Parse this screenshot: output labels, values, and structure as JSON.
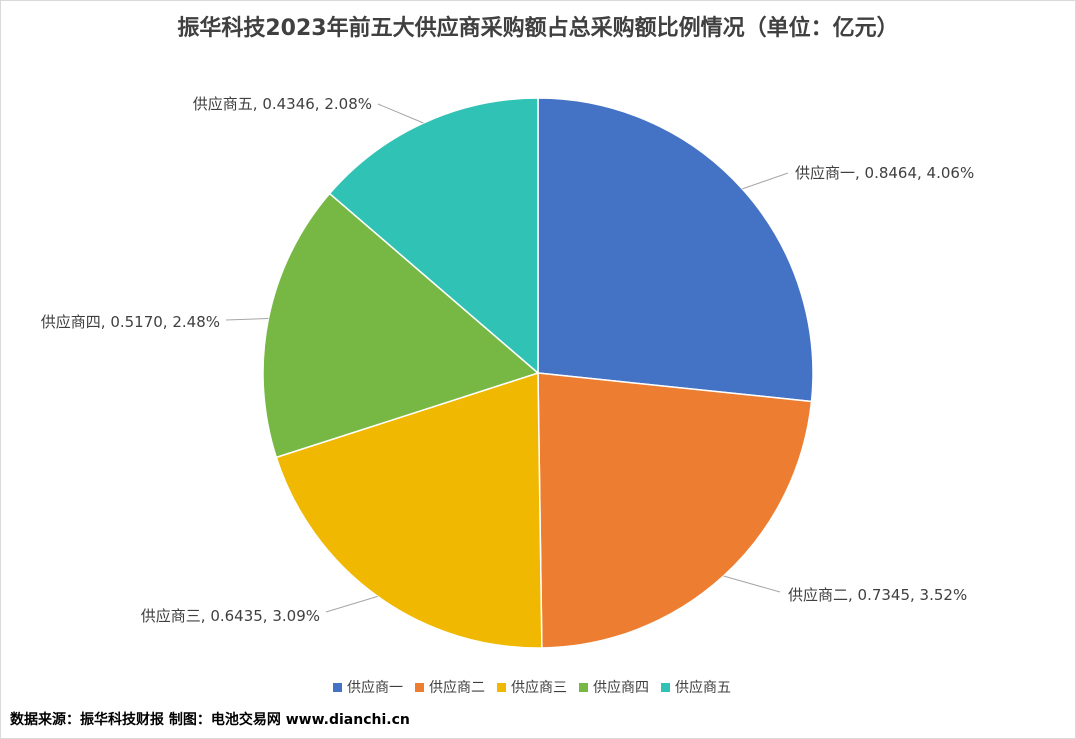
{
  "chart_data": {
    "type": "pie",
    "title": "振华科技2023年前五大供应商采购额占总采购额比例情况（单位：亿元）",
    "slices": [
      {
        "name": "供应商一",
        "value": 0.8464,
        "label": "供应商一, 0.8464, 4.06%",
        "color": "#4472C4"
      },
      {
        "name": "供应商二",
        "value": 0.7345,
        "label": "供应商二, 0.7345, 3.52%",
        "color": "#ED7D31"
      },
      {
        "name": "供应商三",
        "value": 0.6435,
        "label": "供应商三, 0.6435, 3.09%",
        "color": "#F0B800"
      },
      {
        "name": "供应商四",
        "value": 0.517,
        "label": "供应商四, 0.5170, 2.48%",
        "color": "#76B843"
      },
      {
        "name": "供应商五",
        "value": 0.4346,
        "label": "供应商五, 0.4346, 2.08%",
        "color": "#2FC2B5"
      }
    ],
    "legend_position": "bottom"
  },
  "source_text": "数据来源：振华科技财报 制图：电池交易网 www.dianchi.cn"
}
